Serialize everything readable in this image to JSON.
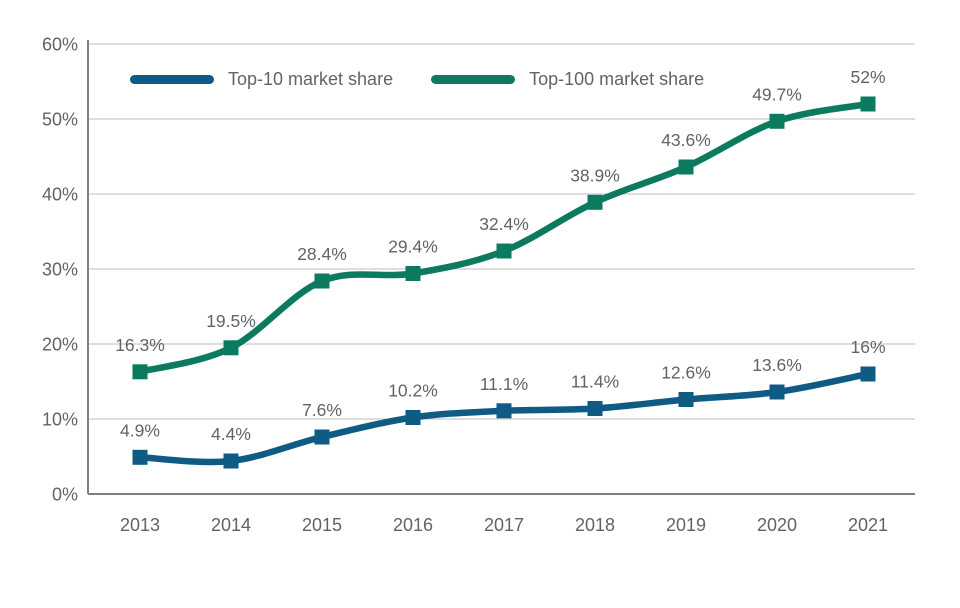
{
  "chart_data": {
    "type": "line",
    "title": "",
    "xlabel": "",
    "ylabel": "",
    "categories": [
      "2013",
      "2014",
      "2015",
      "2016",
      "2017",
      "2018",
      "2019",
      "2020",
      "2021"
    ],
    "series": [
      {
        "name": "Top-10 market share",
        "color": "#0f5b84",
        "values": [
          4.9,
          4.4,
          7.6,
          10.2,
          11.1,
          11.4,
          12.6,
          13.6,
          16
        ],
        "point_labels": [
          "4.9%",
          "4.4%",
          "7.6%",
          "10.2%",
          "11.1%",
          "11.4%",
          "12.6%",
          "13.6%",
          "16%"
        ]
      },
      {
        "name": "Top-100 market share",
        "color": "#0b7a5f",
        "values": [
          16.3,
          19.5,
          28.4,
          29.4,
          32.4,
          38.9,
          43.6,
          49.7,
          52
        ],
        "point_labels": [
          "16.3%",
          "19.5%",
          "28.4%",
          "29.4%",
          "32.4%",
          "38.9%",
          "43.6%",
          "49.7%",
          "52%"
        ]
      }
    ],
    "ylim": [
      0,
      60
    ],
    "ytick_step": 10,
    "ytick_labels": [
      "0%",
      "10%",
      "20%",
      "30%",
      "40%",
      "50%",
      "60%"
    ],
    "grid": true,
    "legend_position": "top-left"
  },
  "colors": {
    "background": "#ffffff",
    "text": "#5f6468",
    "gridline": "#babec0",
    "axis": "#7b8084"
  }
}
